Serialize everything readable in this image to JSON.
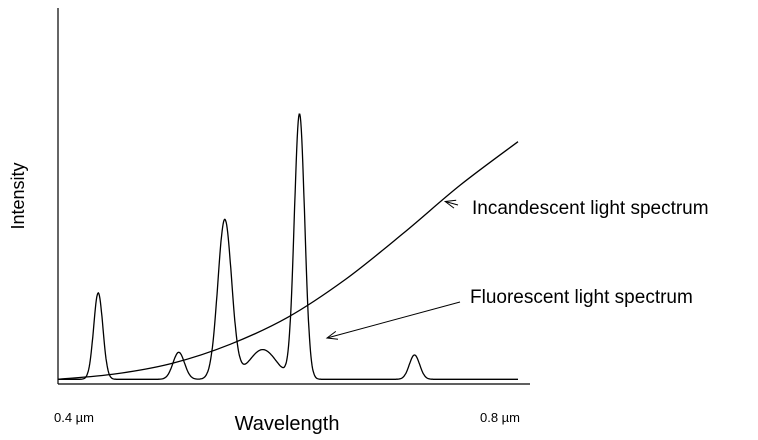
{
  "chart_data": {
    "type": "line",
    "title": "",
    "xlabel": "Wavelength",
    "ylabel": "Intensity",
    "x_unit": "µm",
    "x_tick_labels": [
      "0.4 µm",
      "0.8 µm"
    ],
    "x_tick_values": [
      0.4,
      0.8
    ],
    "xlim": [
      0.4,
      0.8
    ],
    "ylim": [
      0,
      1
    ],
    "grid": false,
    "legend": "none",
    "series": [
      {
        "name": "Incandescent light spectrum",
        "color": "#000000",
        "x": [
          0.4,
          0.45,
          0.5,
          0.55,
          0.6,
          0.65,
          0.7,
          0.75,
          0.8
        ],
        "y": [
          0.01,
          0.03,
          0.07,
          0.14,
          0.24,
          0.38,
          0.55,
          0.73,
          0.89
        ]
      },
      {
        "name": "Fluorescent light spectrum",
        "color": "#000000",
        "baseline": 0.01,
        "peaks": [
          {
            "x": 0.435,
            "y": 0.33,
            "width": 0.004
          },
          {
            "x": 0.505,
            "y": 0.11,
            "width": 0.005
          },
          {
            "x": 0.545,
            "y": 0.6,
            "width": 0.006
          },
          {
            "x": 0.578,
            "y": 0.12,
            "width": 0.012
          },
          {
            "x": 0.61,
            "y": 0.99,
            "width": 0.0045
          },
          {
            "x": 0.71,
            "y": 0.1,
            "width": 0.0045
          }
        ]
      }
    ],
    "annotations": [
      {
        "text": "Incandescent light spectrum",
        "series": 0,
        "arrow_to_x": 0.735
      },
      {
        "text": "Fluorescent light spectrum",
        "series": 1,
        "arrow_to_x": 0.627
      }
    ]
  }
}
